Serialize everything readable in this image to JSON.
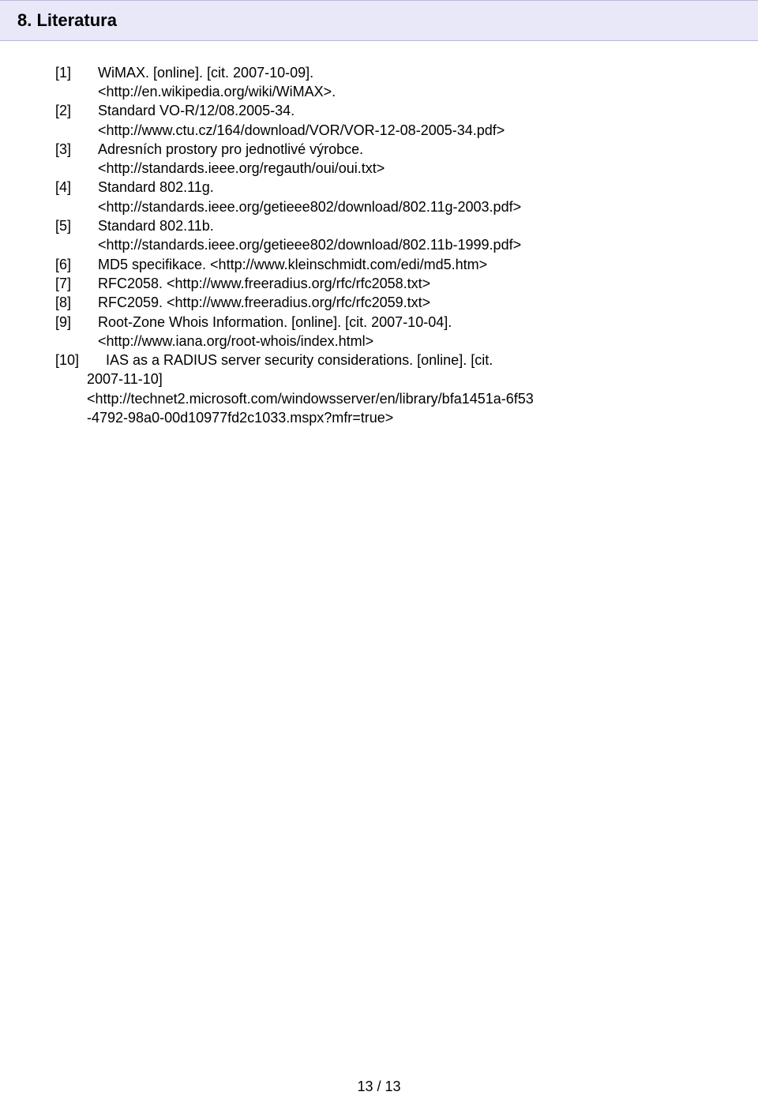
{
  "heading": "8.  Literatura",
  "refs": [
    {
      "num": "[1]",
      "lines": [
        "WiMAX. [online]. [cit. 2007-10-09].",
        "<http://en.wikipedia.org/wiki/WiMAX>."
      ]
    },
    {
      "num": "[2]",
      "lines": [
        "Standard VO-R/12/08.2005-34.",
        "<http://www.ctu.cz/164/download/VOR/VOR-12-08-2005-34.pdf>"
      ]
    },
    {
      "num": "[3]",
      "lines": [
        "Adresních prostory pro jednotlivé výrobce.",
        "<http://standards.ieee.org/regauth/oui/oui.txt>"
      ]
    },
    {
      "num": "[4]",
      "lines": [
        "Standard 802.11g.",
        "<http://standards.ieee.org/getieee802/download/802.11g-2003.pdf>"
      ]
    },
    {
      "num": "[5]",
      "lines": [
        "Standard 802.11b.",
        "<http://standards.ieee.org/getieee802/download/802.11b-1999.pdf>"
      ]
    },
    {
      "num": "[6]",
      "lines": [
        "MD5 specifikace. <http://www.kleinschmidt.com/edi/md5.htm>"
      ]
    },
    {
      "num": "[7]",
      "lines": [
        "RFC2058. <http://www.freeradius.org/rfc/rfc2058.txt>"
      ]
    },
    {
      "num": "[8]",
      "lines": [
        "RFC2059. <http://www.freeradius.org/rfc/rfc2059.txt>"
      ]
    },
    {
      "num": "[9]",
      "lines": [
        "Root-Zone Whois Information. [online]. [cit. 2007-10-04].",
        "<http://www.iana.org/root-whois/index.html>"
      ]
    },
    {
      "num": "[10]",
      "lines": [
        "  IAS as a RADIUS server security considerations. [online]. [cit.",
        "2007-11-10]",
        "<http://technet2.microsoft.com/windowsserver/en/library/bfa1451a-6f53",
        "-4792-98a0-00d10977fd2c1033.mspx?mfr=true>"
      ]
    }
  ],
  "pagenum": "13 / 13"
}
